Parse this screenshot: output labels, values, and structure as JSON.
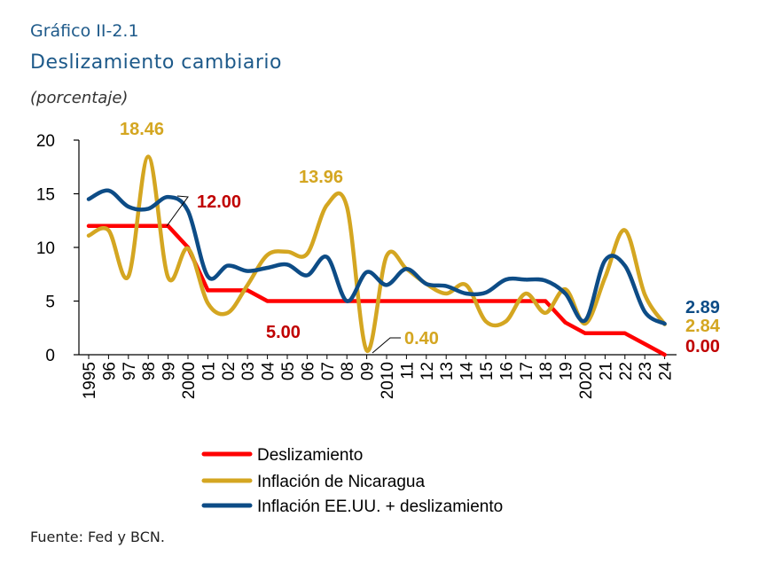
{
  "header": {
    "kicker": "Gráfico II-2.1",
    "title": "Deslizamiento cambiario",
    "unit": "(porcentaje)"
  },
  "footer": {
    "source": "Fuente: Fed y BCN."
  },
  "chart_data": {
    "type": "line",
    "title": "Deslizamiento cambiario",
    "ylabel": "(porcentaje)",
    "xlabel": "",
    "ylim": [
      0,
      20
    ],
    "yticks": [
      "0",
      "5",
      "10",
      "15",
      "20"
    ],
    "categories": [
      "1995",
      "96",
      "97",
      "98",
      "99",
      "2000",
      "01",
      "02",
      "03",
      "04",
      "05",
      "06",
      "07",
      "08",
      "09",
      "2010",
      "11",
      "12",
      "13",
      "14",
      "15",
      "16",
      "17",
      "18",
      "19",
      "2020",
      "21",
      "22",
      "23",
      "24"
    ],
    "grid": false,
    "legend_position": "bottom",
    "series": [
      {
        "name": "Deslizamiento",
        "color": "#ff0000",
        "smooth": false,
        "values": [
          12,
          12,
          12,
          12,
          12,
          10,
          6,
          6,
          6,
          5,
          5,
          5,
          5,
          5,
          5,
          5,
          5,
          5,
          5,
          5,
          5,
          5,
          5,
          5,
          3,
          2,
          2,
          2,
          1,
          0
        ]
      },
      {
        "name": "Inflación de Nicaragua",
        "color": "#d4a621",
        "smooth": true,
        "values": [
          11.1,
          11.6,
          7.3,
          18.46,
          7.2,
          9.9,
          4.8,
          3.9,
          6.5,
          9.3,
          9.6,
          9.4,
          13.96,
          13.8,
          0.4,
          9.2,
          8.0,
          6.6,
          5.7,
          6.5,
          3.1,
          3.1,
          5.7,
          3.9,
          6.1,
          2.9,
          7.2,
          11.6,
          5.6,
          2.84
        ]
      },
      {
        "name": "Inflación EE.UU. + deslizamiento",
        "color": "#0d4c86",
        "smooth": true,
        "values": [
          14.5,
          15.3,
          13.8,
          13.6,
          14.7,
          13.4,
          7.3,
          8.3,
          7.8,
          8.1,
          8.4,
          7.4,
          9.1,
          5.0,
          7.7,
          6.5,
          8.0,
          6.6,
          6.4,
          5.7,
          5.8,
          7.0,
          7.0,
          6.9,
          5.7,
          3.2,
          8.8,
          8.3,
          4.0,
          2.89
        ]
      }
    ],
    "annotations": [
      {
        "text": "18.46",
        "color": "#d4a621"
      },
      {
        "text": "12.00",
        "color": "#c00000"
      },
      {
        "text": "13.96",
        "color": "#d4a621"
      },
      {
        "text": "5.00",
        "color": "#c00000"
      },
      {
        "text": "0.40",
        "color": "#d4a621"
      },
      {
        "text": "2.89",
        "color": "#0d4c86"
      },
      {
        "text": "2.84",
        "color": "#d4a621"
      },
      {
        "text": "0.00",
        "color": "#c00000"
      }
    ]
  }
}
